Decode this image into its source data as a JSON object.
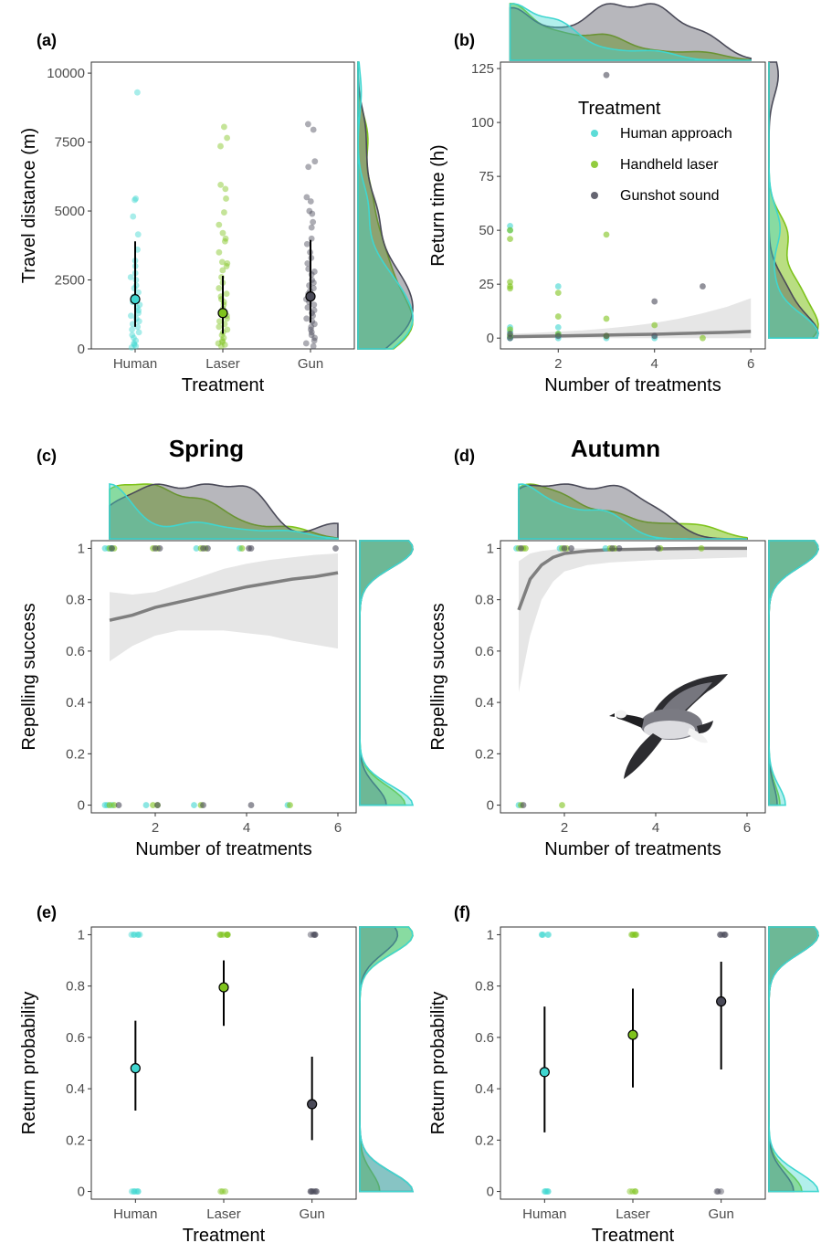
{
  "colors": {
    "human": "#3fd6d0",
    "laser": "#7fc31c",
    "gun": "#4a4a58",
    "fit": "#7f7f7f",
    "ribbon": "#e6e6e6"
  },
  "legend": {
    "title": "Treatment",
    "items": [
      {
        "key": "human",
        "label": "Human approach"
      },
      {
        "key": "laser",
        "label": "Handheld laser"
      },
      {
        "key": "gun",
        "label": "Gunshot sound"
      }
    ]
  },
  "image_description_icon": "barnacle-goose-illustration",
  "chart_data": [
    {
      "panel": "(a)",
      "type": "scatter",
      "x_type": "category",
      "categories": [
        "Human",
        "Laser",
        "Gun"
      ],
      "xlabel": "Treatment",
      "ylabel": "Travel distance (m)",
      "ylim": [
        0,
        10400
      ],
      "yticks": [
        0,
        2500,
        5000,
        7500,
        10000
      ],
      "grid": false,
      "points": {
        "Human": [
          9300,
          5450,
          5400,
          4800,
          4150,
          3600,
          3200,
          3000,
          2750,
          2600,
          2500,
          2300,
          2200,
          2050,
          1900,
          1800,
          1700,
          1600,
          1500,
          1400,
          1300,
          1200,
          1100,
          1000,
          900,
          800,
          700,
          600,
          500,
          400,
          300,
          200,
          150,
          100,
          50
        ],
        "Laser": [
          8050,
          7650,
          7350,
          5950,
          5800,
          5450,
          4950,
          4500,
          4200,
          4000,
          3900,
          3500,
          3150,
          3100,
          3000,
          2850,
          2600,
          2400,
          2200,
          2000,
          1900,
          1800,
          1700,
          1600,
          1450,
          1300,
          1200,
          1100,
          1000,
          900,
          800,
          700,
          600,
          500,
          400,
          300,
          250,
          200,
          150,
          100
        ],
        "Gun": [
          8150,
          7950,
          6800,
          6600,
          5500,
          5350,
          5000,
          4900,
          4600,
          4400,
          4000,
          3800,
          3500,
          3300,
          3100,
          2900,
          2800,
          2700,
          2500,
          2400,
          2300,
          2200,
          2100,
          2000,
          1900,
          1800,
          1700,
          1600,
          1500,
          1400,
          1300,
          1200,
          1100,
          1000,
          900,
          800,
          700,
          600,
          500,
          400,
          300,
          200,
          100
        ]
      },
      "summary": [
        {
          "category": "Human",
          "mean": 1800,
          "lower": 800,
          "upper": 3900
        },
        {
          "category": "Laser",
          "mean": 1300,
          "lower": 550,
          "upper": 2650
        },
        {
          "category": "Gun",
          "mean": 1900,
          "lower": 950,
          "upper": 3950
        }
      ]
    },
    {
      "panel": "(b)",
      "type": "scatter",
      "x_type": "numeric",
      "xlabel": "Number of treatments",
      "ylabel": "Return time (h)",
      "xlim": [
        0.8,
        6.3
      ],
      "ylim": [
        -5,
        128
      ],
      "xticks": [
        2,
        4,
        6
      ],
      "yticks": [
        0,
        25,
        50,
        75,
        100,
        125
      ],
      "grid": false,
      "legend_position": "top-right",
      "points": {
        "human": [
          [
            1,
            52
          ],
          [
            1,
            50
          ],
          [
            1,
            5
          ],
          [
            1,
            3
          ],
          [
            1,
            1
          ],
          [
            1,
            0
          ],
          [
            2,
            24
          ],
          [
            2,
            5
          ],
          [
            2,
            2
          ],
          [
            2,
            0
          ],
          [
            3,
            0
          ],
          [
            4,
            0
          ]
        ],
        "laser": [
          [
            1,
            50
          ],
          [
            1,
            46
          ],
          [
            1,
            26
          ],
          [
            1,
            24
          ],
          [
            1,
            23
          ],
          [
            1,
            4
          ],
          [
            1,
            1
          ],
          [
            2,
            21
          ],
          [
            2,
            10
          ],
          [
            2,
            2
          ],
          [
            3,
            48
          ],
          [
            3,
            9
          ],
          [
            3,
            1
          ],
          [
            4,
            6
          ],
          [
            5,
            0
          ]
        ],
        "gun": [
          [
            1,
            2
          ],
          [
            1,
            0
          ],
          [
            2,
            1
          ],
          [
            3,
            122
          ],
          [
            3,
            1
          ],
          [
            4,
            17
          ],
          [
            4,
            1
          ],
          [
            5,
            24
          ]
        ]
      },
      "fit": {
        "x": [
          1,
          1.5,
          2,
          2.5,
          3,
          3.5,
          4,
          4.5,
          5,
          5.5,
          6
        ],
        "y": [
          0.6,
          0.8,
          1,
          1.2,
          1.4,
          1.6,
          1.8,
          2.1,
          2.4,
          2.7,
          3.1
        ],
        "lower": [
          0,
          0,
          0,
          0,
          0,
          0,
          0,
          0,
          0,
          0,
          0
        ],
        "upper": [
          2,
          2.4,
          3,
          3.6,
          4.5,
          5.6,
          7,
          9,
          11.5,
          14.5,
          18.5
        ]
      }
    },
    {
      "panel": "(c)",
      "title": "Spring",
      "type": "scatter",
      "x_type": "numeric",
      "xlabel": "Number of treatments",
      "ylabel": "Repelling success",
      "xlim": [
        0.6,
        6.4
      ],
      "ylim": [
        -0.03,
        1.03
      ],
      "xticks": [
        2,
        4,
        6
      ],
      "yticks": [
        0,
        0.2,
        0.4,
        0.6,
        0.8,
        1
      ],
      "grid": false,
      "points": {
        "human": [
          [
            0.9,
            1
          ],
          [
            0.97,
            1
          ],
          [
            1.03,
            1
          ],
          [
            1.05,
            1
          ],
          [
            2.9,
            1
          ],
          [
            3.85,
            1
          ],
          [
            0.9,
            0
          ],
          [
            0.95,
            0
          ],
          [
            1.05,
            0
          ],
          [
            1.8,
            0
          ],
          [
            2.85,
            0
          ],
          [
            4.9,
            0
          ]
        ],
        "laser": [
          [
            1.0,
            1
          ],
          [
            1.1,
            1
          ],
          [
            1.95,
            1
          ],
          [
            2.05,
            1
          ],
          [
            3.0,
            1
          ],
          [
            3.1,
            1
          ],
          [
            3.9,
            1
          ],
          [
            1.0,
            0
          ],
          [
            1.1,
            0
          ],
          [
            1.95,
            0
          ],
          [
            2.05,
            0
          ],
          [
            3.0,
            0
          ],
          [
            4.95,
            0
          ]
        ],
        "gun": [
          [
            1.05,
            1
          ],
          [
            2.0,
            1
          ],
          [
            2.1,
            1
          ],
          [
            3.05,
            1
          ],
          [
            3.15,
            1
          ],
          [
            4.05,
            1
          ],
          [
            4.1,
            1
          ],
          [
            5.95,
            1
          ],
          [
            1.2,
            0
          ],
          [
            2.05,
            0
          ],
          [
            3.05,
            0
          ],
          [
            4.1,
            0
          ]
        ]
      },
      "fit": {
        "x": [
          1,
          1.5,
          2,
          2.5,
          3,
          3.5,
          4,
          4.5,
          5,
          5.5,
          6
        ],
        "y": [
          0.72,
          0.74,
          0.77,
          0.79,
          0.81,
          0.83,
          0.85,
          0.865,
          0.88,
          0.89,
          0.905
        ],
        "lower": [
          0.56,
          0.62,
          0.66,
          0.68,
          0.68,
          0.68,
          0.67,
          0.66,
          0.64,
          0.625,
          0.61
        ],
        "upper": [
          0.83,
          0.82,
          0.83,
          0.86,
          0.89,
          0.92,
          0.94,
          0.955,
          0.965,
          0.975,
          0.98
        ]
      }
    },
    {
      "panel": "(d)",
      "title": "Autumn",
      "type": "scatter",
      "x_type": "numeric",
      "xlabel": "Number of treatments",
      "ylabel": "Repelling success",
      "xlim": [
        0.6,
        6.4
      ],
      "ylim": [
        -0.03,
        1.03
      ],
      "xticks": [
        2,
        4,
        6
      ],
      "yticks": [
        0,
        0.2,
        0.4,
        0.6,
        0.8,
        1
      ],
      "grid": false,
      "points": {
        "human": [
          [
            0.95,
            1
          ],
          [
            1.9,
            1
          ],
          [
            2.9,
            1
          ],
          [
            1.0,
            0
          ]
        ],
        "laser": [
          [
            1.0,
            1
          ],
          [
            1.1,
            1
          ],
          [
            1.15,
            1
          ],
          [
            1.95,
            1
          ],
          [
            2.05,
            1
          ],
          [
            3.0,
            1
          ],
          [
            3.1,
            1
          ],
          [
            4.1,
            1
          ],
          [
            5.0,
            1
          ],
          [
            1.05,
            0
          ],
          [
            1.95,
            0
          ]
        ],
        "gun": [
          [
            1.05,
            1
          ],
          [
            2.0,
            1
          ],
          [
            2.15,
            1
          ],
          [
            3.05,
            1
          ],
          [
            3.2,
            1
          ],
          [
            4.05,
            1
          ],
          [
            1.1,
            0
          ]
        ]
      },
      "fit": {
        "x": [
          1,
          1.25,
          1.5,
          1.75,
          2,
          2.5,
          3,
          4,
          5,
          6
        ],
        "y": [
          0.76,
          0.88,
          0.935,
          0.965,
          0.98,
          0.99,
          0.995,
          0.998,
          1,
          1
        ],
        "lower": [
          0.44,
          0.66,
          0.8,
          0.87,
          0.91,
          0.935,
          0.945,
          0.955,
          0.96,
          0.965
        ],
        "upper": [
          0.95,
          0.98,
          0.99,
          0.995,
          1,
          1,
          1,
          1,
          1,
          1
        ]
      }
    },
    {
      "panel": "(e)",
      "type": "scatter",
      "x_type": "category",
      "categories": [
        "Human",
        "Laser",
        "Gun"
      ],
      "xlabel": "Treatment",
      "ylabel": "Return probability",
      "ylim": [
        -0.03,
        1.03
      ],
      "yticks": [
        0,
        0.2,
        0.4,
        0.6,
        0.8,
        1
      ],
      "grid": false,
      "points": {
        "Human": [
          1,
          1,
          1,
          1,
          1,
          1,
          0,
          0,
          0,
          0,
          0,
          0
        ],
        "Laser": [
          1,
          1,
          1,
          1,
          1,
          1,
          1,
          1,
          0,
          0,
          0
        ],
        "Gun": [
          1,
          1,
          1,
          1,
          1,
          0,
          0,
          0,
          0,
          0,
          0,
          0
        ]
      },
      "summary": [
        {
          "category": "Human",
          "mean": 0.48,
          "lower": 0.315,
          "upper": 0.665
        },
        {
          "category": "Laser",
          "mean": 0.795,
          "lower": 0.645,
          "upper": 0.9
        },
        {
          "category": "Gun",
          "mean": 0.34,
          "lower": 0.2,
          "upper": 0.525
        }
      ]
    },
    {
      "panel": "(f)",
      "type": "scatter",
      "x_type": "category",
      "categories": [
        "Human",
        "Laser",
        "Gun"
      ],
      "xlabel": "Treatment",
      "ylabel": "Return probability",
      "ylim": [
        -0.03,
        1.03
      ],
      "yticks": [
        0,
        0.2,
        0.4,
        0.6,
        0.8,
        1
      ],
      "grid": false,
      "points": {
        "Human": [
          1,
          1,
          1,
          1,
          1,
          0,
          0,
          0,
          0,
          0
        ],
        "Laser": [
          1,
          1,
          1,
          1,
          1,
          1,
          0,
          0,
          0,
          0
        ],
        "Gun": [
          1,
          1,
          1,
          1,
          1,
          1,
          0,
          0,
          0
        ]
      },
      "summary": [
        {
          "category": "Human",
          "mean": 0.465,
          "lower": 0.23,
          "upper": 0.72
        },
        {
          "category": "Laser",
          "mean": 0.61,
          "lower": 0.405,
          "upper": 0.79
        },
        {
          "category": "Gun",
          "mean": 0.74,
          "lower": 0.475,
          "upper": 0.895
        }
      ]
    }
  ]
}
